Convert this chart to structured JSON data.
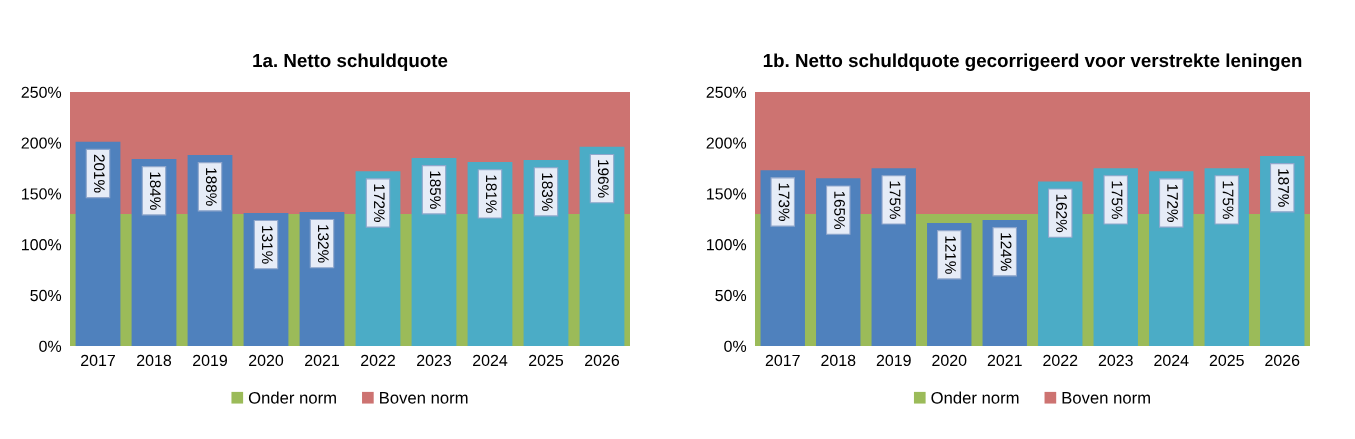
{
  "chart_data": [
    {
      "type": "bar",
      "title": "1a. Netto schuldquote",
      "categories": [
        "2017",
        "2018",
        "2019",
        "2020",
        "2021",
        "2022",
        "2023",
        "2024",
        "2025",
        "2026"
      ],
      "values": [
        201,
        184,
        188,
        131,
        132,
        172,
        185,
        181,
        183,
        196
      ],
      "colors": [
        "#4f81bd",
        "#4f81bd",
        "#4f81bd",
        "#4f81bd",
        "#4f81bd",
        "#4bacc6",
        "#4bacc6",
        "#4bacc6",
        "#4bacc6",
        "#4bacc6"
      ],
      "value_labels": [
        "201%",
        "184%",
        "188%",
        "131%",
        "132%",
        "172%",
        "185%",
        "181%",
        "183%",
        "196%"
      ],
      "ylim": [
        0,
        250
      ],
      "yticks": [
        {
          "value": 0,
          "label": "0%"
        },
        {
          "value": 50,
          "label": "50%"
        },
        {
          "value": 100,
          "label": "100%"
        },
        {
          "value": 150,
          "label": "150%"
        },
        {
          "value": 200,
          "label": "200%"
        },
        {
          "value": 250,
          "label": "250%"
        }
      ],
      "bands": [
        {
          "axis": "y",
          "from": 0,
          "to": 130,
          "label": "Onder norm",
          "color": "#9bbb59"
        },
        {
          "axis": "y",
          "from": 130,
          "to": 250,
          "label": "Boven norm",
          "color": "#cd7371"
        }
      ],
      "legend": "bottom",
      "grid": false
    },
    {
      "type": "bar",
      "title": "1b. Netto schuldquote gecorrigeerd voor verstrekte leningen",
      "categories": [
        "2017",
        "2018",
        "2019",
        "2020",
        "2021",
        "2022",
        "2023",
        "2024",
        "2025",
        "2026"
      ],
      "values": [
        173,
        165,
        175,
        121,
        124,
        162,
        175,
        172,
        175,
        187
      ],
      "colors": [
        "#4f81bd",
        "#4f81bd",
        "#4f81bd",
        "#4f81bd",
        "#4f81bd",
        "#4bacc6",
        "#4bacc6",
        "#4bacc6",
        "#4bacc6",
        "#4bacc6"
      ],
      "value_labels": [
        "173%",
        "165%",
        "175%",
        "121%",
        "124%",
        "162%",
        "175%",
        "172%",
        "175%",
        "187%"
      ],
      "ylim": [
        0,
        250
      ],
      "yticks": [
        {
          "value": 0,
          "label": "0%"
        },
        {
          "value": 50,
          "label": "50%"
        },
        {
          "value": 100,
          "label": "100%"
        },
        {
          "value": 150,
          "label": "150%"
        },
        {
          "value": 200,
          "label": "200%"
        },
        {
          "value": 250,
          "label": "250%"
        }
      ],
      "bands": [
        {
          "axis": "y",
          "from": 0,
          "to": 130,
          "label": "Onder norm",
          "color": "#9bbb59"
        },
        {
          "axis": "y",
          "from": 130,
          "to": 250,
          "label": "Boven norm",
          "color": "#cd7371"
        }
      ],
      "legend": "bottom",
      "grid": false
    }
  ]
}
